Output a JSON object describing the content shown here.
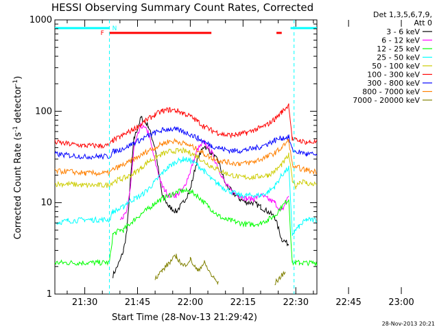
{
  "chart_data": {
    "type": "line",
    "title": "HESSI Observing Summary Count Rates, Corrected",
    "ylabel": "Corrected Count Rate (s^-1 detector^-1)",
    "ylabel_parts": [
      "Corrected Count Rate (s",
      "-1",
      " detector",
      "-1",
      ")"
    ],
    "xlabel": "Start Time (28-Nov-13 21:29:42)",
    "x_ticks": [
      "21:30",
      "21:45",
      "22:00",
      "22:15",
      "22:30",
      "22:45",
      "23:00"
    ],
    "y_ticks": [
      "1",
      "10",
      "100",
      "1000"
    ],
    "yscale": "log",
    "ylim": [
      1,
      1000
    ],
    "xlim_minutes": [
      21.5,
      96
    ],
    "legend_header": [
      "Det 1,3,5,6,7,9,",
      "Att 0"
    ],
    "legend_placement": "right",
    "flag_labels": {
      "fast": "F",
      "night": "N"
    },
    "footer": "28-Nov-2013 20:21",
    "series": [
      {
        "name": "3 - 6 keV",
        "color": "#000000",
        "x": [
          21.5,
          36,
          38,
          40,
          41,
          42,
          43,
          44,
          46,
          48,
          50,
          52,
          54,
          56,
          58,
          60,
          62,
          64,
          66,
          68,
          70,
          72,
          74,
          76,
          78,
          80,
          82,
          84,
          86,
          88,
          91,
          93,
          94,
          95
        ],
        "y": [
          null,
          null,
          1.6,
          2.3,
          3,
          5,
          18,
          50,
          85,
          70,
          40,
          12,
          9,
          8,
          10,
          14,
          30,
          42,
          35,
          28,
          16,
          13,
          11,
          10,
          10,
          9,
          8,
          7,
          4,
          3.5,
          null,
          null,
          null,
          null
        ]
      },
      {
        "name": "6 - 12 keV",
        "color": "#ff00ff",
        "x": [
          21.5,
          38,
          40,
          41,
          42,
          43,
          44,
          46,
          48,
          50,
          52,
          54,
          56,
          58,
          60,
          62,
          64,
          66,
          68,
          70,
          72,
          74,
          76,
          78,
          80,
          82,
          84,
          86,
          88,
          90
        ],
        "y": [
          null,
          null,
          7,
          7,
          8,
          15,
          40,
          70,
          60,
          28,
          15,
          12,
          12,
          14,
          22,
          38,
          46,
          36,
          24,
          16,
          13,
          12,
          11,
          11,
          12,
          11,
          10,
          8,
          12,
          null
        ]
      },
      {
        "name": "12 - 25 keV",
        "color": "#00ff00",
        "x": [
          21.5,
          28,
          33,
          36,
          37,
          38,
          40,
          41,
          42,
          44,
          46,
          48,
          50,
          52,
          54,
          56,
          58,
          60,
          62,
          64,
          66,
          68,
          70,
          72,
          74,
          76,
          78,
          80,
          82,
          84,
          86,
          88,
          89,
          90,
          91,
          92,
          93,
          94,
          96
        ],
        "y": [
          2.2,
          2.2,
          2.2,
          2.2,
          2.2,
          4.5,
          5,
          5,
          5.5,
          6.5,
          7.5,
          8.5,
          10,
          11,
          12,
          13,
          13.5,
          13.2,
          12,
          10,
          8.5,
          7.2,
          6.5,
          6.3,
          6,
          5.8,
          5.8,
          6,
          6.5,
          7.2,
          9,
          11,
          2.2,
          2.2,
          2.2,
          2.2,
          2.2,
          2.2,
          2.2
        ]
      },
      {
        "name": "25 - 50 keV",
        "color": "#00ffff",
        "x": [
          21.5,
          25,
          30,
          34,
          37,
          38,
          40,
          41,
          42,
          44,
          46,
          48,
          50,
          52,
          54,
          56,
          58,
          60,
          62,
          64,
          66,
          68,
          70,
          72,
          74,
          76,
          78,
          80,
          82,
          84,
          86,
          88,
          89,
          90,
          91,
          92,
          93,
          94,
          96
        ],
        "y": [
          6,
          6.3,
          6.5,
          6.5,
          6.5,
          8,
          8.5,
          9,
          10,
          11,
          12,
          14,
          17,
          21,
          25,
          28,
          30,
          29,
          26,
          22,
          18,
          16,
          14,
          13,
          12,
          12,
          12,
          12,
          13,
          15,
          20,
          24,
          4.5,
          5,
          5.5,
          6,
          6.5,
          6.5,
          6.5
        ]
      },
      {
        "name": "50 - 100 keV",
        "color": "#cccc00",
        "x": [
          21.5,
          25,
          30,
          34,
          37,
          38,
          40,
          42,
          44,
          46,
          48,
          50,
          52,
          54,
          56,
          58,
          60,
          62,
          64,
          66,
          68,
          70,
          72,
          74,
          76,
          78,
          80,
          82,
          84,
          86,
          88,
          89,
          90,
          91,
          92,
          93,
          94,
          96
        ],
        "y": [
          16,
          16,
          15.5,
          15.5,
          15.5,
          17,
          18,
          19,
          21,
          24,
          28,
          31,
          34,
          36,
          37,
          37,
          35,
          32,
          28,
          25,
          23,
          21,
          20,
          19,
          19,
          19,
          19.5,
          20,
          22,
          26,
          33,
          18,
          15,
          17,
          17,
          16.5,
          16,
          16
        ]
      },
      {
        "name": "100 - 300 keV",
        "color": "#ff0000",
        "x": [
          21.5,
          25,
          30,
          34,
          37,
          38,
          40,
          42,
          44,
          46,
          48,
          50,
          52,
          54,
          56,
          58,
          60,
          62,
          64,
          66,
          68,
          70,
          72,
          74,
          76,
          78,
          80,
          82,
          84,
          86,
          88,
          89,
          90,
          91,
          92,
          93,
          94,
          96
        ],
        "y": [
          46,
          44,
          42,
          42,
          42,
          48,
          52,
          58,
          64,
          72,
          82,
          92,
          100,
          104,
          102,
          96,
          88,
          78,
          68,
          62,
          58,
          55,
          55,
          56,
          58,
          62,
          66,
          72,
          82,
          98,
          118,
          50,
          48,
          48,
          47,
          46,
          46,
          46
        ]
      },
      {
        "name": "300 - 800 keV",
        "color": "#0000ff",
        "x": [
          21.5,
          25,
          30,
          34,
          37,
          38,
          40,
          42,
          44,
          46,
          48,
          50,
          52,
          54,
          56,
          58,
          60,
          62,
          64,
          66,
          68,
          70,
          72,
          74,
          76,
          78,
          80,
          82,
          84,
          86,
          88,
          89,
          90,
          91,
          92,
          93,
          94,
          96
        ],
        "y": [
          34,
          33,
          32,
          32,
          32,
          36,
          38,
          41,
          45,
          49,
          54,
          58,
          62,
          64,
          63,
          60,
          56,
          51,
          46,
          42,
          40,
          38,
          37,
          37,
          38,
          39,
          41,
          44,
          48,
          51,
          52,
          38,
          36,
          36,
          35,
          34,
          34,
          33
        ]
      },
      {
        "name": "800 - 7000 keV",
        "color": "#ff8000",
        "x": [
          21.5,
          25,
          30,
          34,
          37,
          38,
          40,
          42,
          44,
          46,
          48,
          50,
          52,
          54,
          56,
          58,
          60,
          62,
          64,
          66,
          68,
          70,
          72,
          74,
          76,
          78,
          80,
          82,
          84,
          86,
          88,
          89,
          90,
          91,
          92,
          93,
          94,
          96
        ],
        "y": [
          22,
          22,
          21,
          21,
          21,
          23,
          25,
          27,
          30,
          33,
          37,
          40,
          44,
          47,
          47,
          45,
          42,
          38,
          34,
          31,
          29,
          28,
          27,
          27,
          27,
          28,
          30,
          32,
          35,
          40,
          48,
          26,
          24,
          24,
          23,
          23,
          22,
          22
        ]
      },
      {
        "name": "7000 - 20000 keV",
        "color": "#808000",
        "x": [
          21.5,
          48,
          50,
          52,
          54,
          56,
          58,
          60,
          62,
          64,
          66,
          68,
          70,
          72,
          74,
          76,
          78,
          80,
          82,
          84,
          86,
          87,
          88,
          89,
          96
        ],
        "y": [
          null,
          null,
          1.5,
          1.8,
          2.2,
          2.6,
          2.0,
          2.4,
          1.8,
          2.2,
          1.6,
          1.3,
          null,
          null,
          null,
          null,
          null,
          null,
          null,
          1.3,
          1.6,
          1.8,
          null,
          null,
          null
        ]
      }
    ],
    "flag_bars": [
      {
        "label": "night",
        "color": "#00ffff",
        "segments": [
          [
            21.5,
            37
          ],
          [
            88.5,
            96
          ]
        ]
      },
      {
        "label": "fast",
        "color": "#ff0000",
        "segments": [
          [
            37,
            66
          ],
          [
            84.5,
            86
          ]
        ]
      }
    ],
    "markers": [
      {
        "color": "#00ffff",
        "x": [
          37,
          89.5
        ]
      }
    ]
  }
}
